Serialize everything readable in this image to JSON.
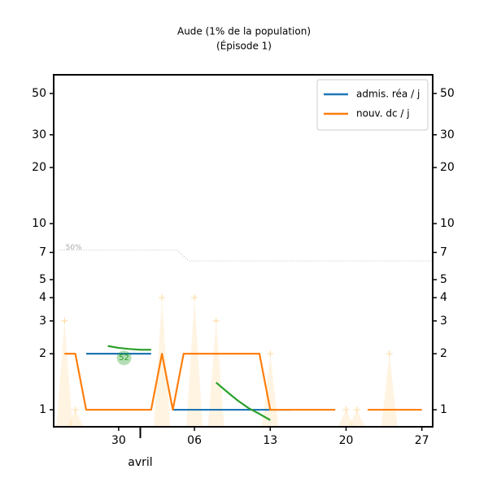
{
  "chart_data": {
    "type": "line",
    "title": "Aude (1% de la population)",
    "subtitle": "(Épisode 1)",
    "x": [
      -7,
      -6,
      -5,
      -4,
      -3,
      -2,
      -1,
      0,
      1,
      2,
      3,
      4,
      5,
      6,
      7,
      8,
      9,
      10,
      11,
      12,
      13,
      14,
      15,
      16,
      17,
      18,
      19,
      20,
      21,
      22,
      23,
      24,
      25,
      26
    ],
    "xlim": [
      -8,
      27
    ],
    "xticks": [
      {
        "value": -2,
        "label": "30"
      },
      {
        "value": 5,
        "label": "06"
      },
      {
        "value": 12,
        "label": "13"
      },
      {
        "value": 19,
        "label": "20"
      },
      {
        "value": 26,
        "label": "27"
      }
    ],
    "month_label": {
      "value": 0,
      "label": "avril"
    },
    "ylim": [
      0.81,
      63
    ],
    "log_scale": true,
    "yticks": [
      1,
      2,
      3,
      4,
      5,
      7,
      10,
      20,
      30,
      50
    ],
    "legend": "upper right",
    "series": [
      {
        "name": "admis. réa / j",
        "color": "#1f77b4",
        "values": [
          null,
          null,
          2,
          2,
          2,
          2,
          2,
          2,
          2,
          null,
          1,
          1,
          1,
          1,
          1,
          1,
          1,
          1,
          1,
          1,
          1,
          1,
          null,
          null,
          null,
          null,
          null,
          null,
          null,
          null,
          null,
          null,
          null,
          null
        ]
      },
      {
        "name": "nouv. dc / j",
        "color": "#ff7f0e",
        "values": [
          2,
          2,
          1,
          1,
          1,
          1,
          1,
          1,
          1,
          2,
          1,
          2,
          2,
          2,
          2,
          2,
          2,
          2,
          2,
          1,
          1,
          1,
          1,
          1,
          1,
          1,
          null,
          null,
          1,
          1,
          1,
          1,
          1,
          1
        ]
      },
      {
        "color": "#2ca02c",
        "values": [
          null,
          null,
          null,
          null,
          2.2,
          2.15,
          2.12,
          2.1,
          2.1,
          null,
          null,
          null,
          null,
          null,
          1.4,
          1.25,
          1.12,
          1.02,
          0.95,
          0.88,
          null,
          null,
          null,
          null,
          null,
          null,
          null,
          null,
          null,
          null,
          null,
          null,
          null,
          null
        ]
      }
    ],
    "raw": {
      "color": "#ffd9a0",
      "values": [
        3,
        1,
        null,
        null,
        null,
        null,
        null,
        null,
        null,
        4,
        null,
        null,
        4,
        null,
        3,
        null,
        null,
        null,
        null,
        2,
        null,
        null,
        null,
        null,
        null,
        null,
        1,
        1,
        null,
        null,
        2,
        null,
        null,
        null
      ]
    },
    "threshold": {
      "label": "50%",
      "x": [
        -7.5,
        3.4,
        4.5,
        27
      ],
      "values": [
        7.2,
        7.2,
        6.3,
        6.3
      ]
    },
    "annotation": {
      "text": "52",
      "x": -1.5,
      "y": 1.9,
      "color": "#2ca02c"
    }
  }
}
